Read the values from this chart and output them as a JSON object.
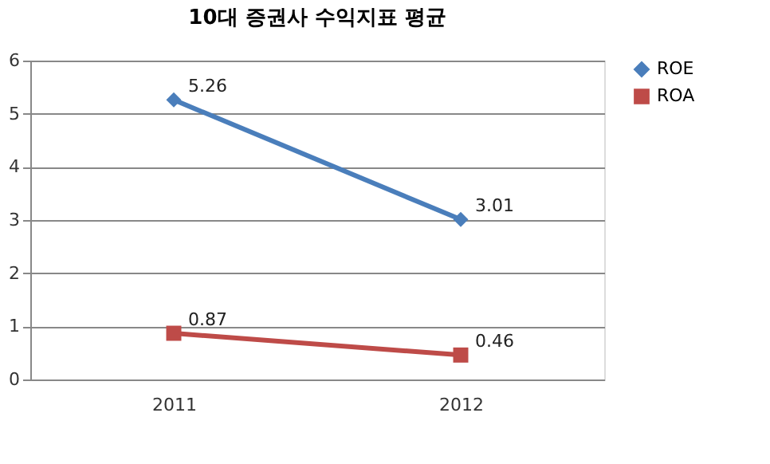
{
  "chart_data": {
    "type": "line",
    "title": "10대 증권사 수익지표 평균",
    "categories": [
      "2011",
      "2012"
    ],
    "series": [
      {
        "name": "ROE",
        "color": "#4a7ebb",
        "values": [
          5.26,
          3.01
        ],
        "marker": "diamond"
      },
      {
        "name": "ROA",
        "color": "#be4b48",
        "values": [
          0.87,
          0.46
        ],
        "marker": "square"
      }
    ],
    "ylim": [
      0,
      6
    ],
    "yticks": [
      0,
      1,
      2,
      3,
      4,
      5,
      6
    ],
    "grid": "y",
    "legend": "right",
    "data_labels": true,
    "line_style": "solid"
  }
}
